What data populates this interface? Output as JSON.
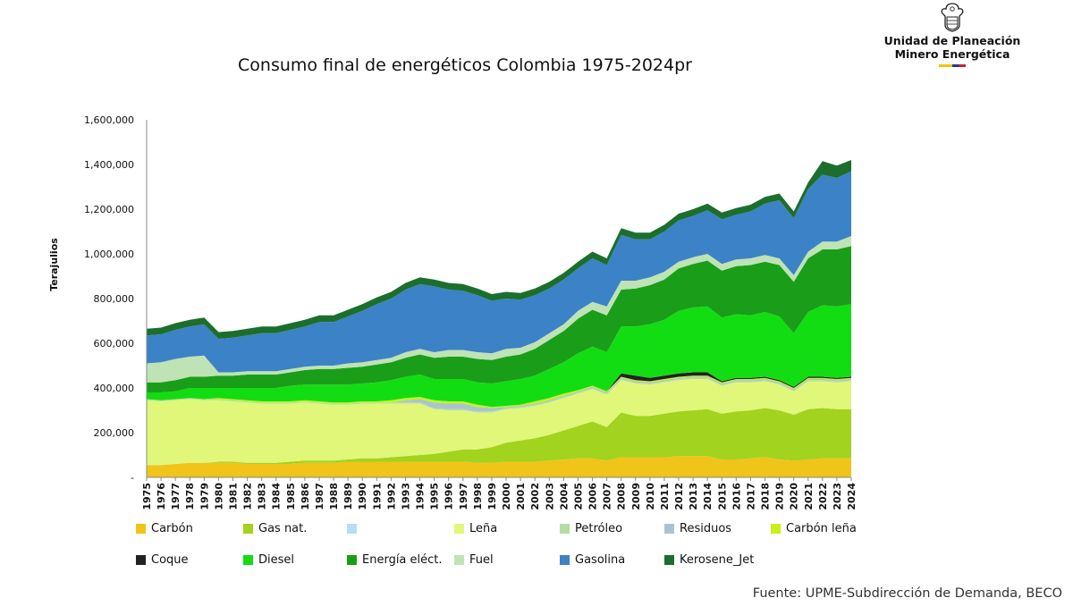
{
  "logo": {
    "line1": "Unidad de Planeación",
    "line2": "Minero Energética",
    "flag_colors": [
      "#f2c500",
      "#1f3c88",
      "#d21f2b"
    ]
  },
  "source": "Fuente: UPME-Subdirección de Demanda, BECO",
  "chart_data": {
    "type": "area",
    "stacked": true,
    "title": "Consumo final de energéticos Colombia 1975-2024pr",
    "ylabel": "Terajulios",
    "xlabel": "",
    "ylim": [
      0,
      1600000
    ],
    "yticks": [
      0,
      200000,
      400000,
      600000,
      800000,
      1000000,
      1200000,
      1400000,
      1600000
    ],
    "ytick_labels": [
      "-",
      "200,000",
      "400,000",
      "600,000",
      "800,000",
      "1,000,000",
      "1,200,000",
      "1,400,000",
      "1,600,000"
    ],
    "grid": false,
    "legend_position": "bottom",
    "x": [
      "1975",
      "1976",
      "1977",
      "1978",
      "1979",
      "1980",
      "1981",
      "1982",
      "1983",
      "1984",
      "1985",
      "1986",
      "1987",
      "1988",
      "1989",
      "1990",
      "1991",
      "1992",
      "1993",
      "1994",
      "1995",
      "1996",
      "1997",
      "1998",
      "1999",
      "2000",
      "2001",
      "2002",
      "2003",
      "2004",
      "2005",
      "2006",
      "2007",
      "2008",
      "2009",
      "2010",
      "2011",
      "2012",
      "2013",
      "2014",
      "2015",
      "2016",
      "2017",
      "2018",
      "2019",
      "2020",
      "2021",
      "2022",
      "2023",
      "2024"
    ],
    "series": [
      {
        "name": "Carbón",
        "color": "#f0c419",
        "values": [
          55000,
          55000,
          60000,
          65000,
          65000,
          65000,
          65000,
          60000,
          60000,
          60000,
          60000,
          65000,
          65000,
          65000,
          70000,
          70000,
          70000,
          70000,
          70000,
          70000,
          70000,
          70000,
          70000,
          65000,
          65000,
          70000,
          70000,
          70000,
          75000,
          80000,
          85000,
          85000,
          75000,
          90000,
          90000,
          90000,
          90000,
          95000,
          95000,
          95000,
          80000,
          80000,
          85000,
          90000,
          80000,
          75000,
          80000,
          85000,
          85000,
          85000
        ]
      },
      {
        "name": "Gas nat.",
        "color": "#a2d31e",
        "values": [
          0,
          0,
          0,
          0,
          0,
          5000,
          5000,
          5000,
          5000,
          5000,
          10000,
          10000,
          10000,
          10000,
          10000,
          15000,
          15000,
          20000,
          25000,
          30000,
          35000,
          45000,
          55000,
          60000,
          70000,
          85000,
          95000,
          105000,
          115000,
          130000,
          145000,
          165000,
          150000,
          200000,
          185000,
          185000,
          195000,
          200000,
          205000,
          210000,
          205000,
          215000,
          215000,
          220000,
          220000,
          205000,
          225000,
          225000,
          220000,
          220000
        ]
      },
      {
        "name": "",
        "color": "#b3e0f5",
        "values": [
          0,
          0,
          0,
          0,
          0,
          0,
          0,
          0,
          0,
          0,
          0,
          0,
          0,
          0,
          0,
          0,
          0,
          0,
          0,
          0,
          0,
          0,
          0,
          0,
          0,
          0,
          0,
          0,
          0,
          0,
          0,
          0,
          0,
          0,
          0,
          0,
          0,
          0,
          0,
          0,
          0,
          0,
          0,
          0,
          0,
          0,
          0,
          0,
          0,
          0
        ]
      },
      {
        "name": "Leña",
        "color": "#e0f77a",
        "values": [
          290000,
          285000,
          285000,
          285000,
          280000,
          275000,
          270000,
          270000,
          265000,
          265000,
          260000,
          260000,
          255000,
          250000,
          245000,
          245000,
          245000,
          240000,
          235000,
          230000,
          200000,
          185000,
          175000,
          165000,
          155000,
          150000,
          145000,
          145000,
          145000,
          145000,
          145000,
          145000,
          145000,
          145000,
          145000,
          140000,
          140000,
          140000,
          140000,
          135000,
          125000,
          130000,
          125000,
          120000,
          115000,
          105000,
          125000,
          120000,
          120000,
          125000
        ]
      },
      {
        "name": "Petróleo",
        "color": "#b5dda0",
        "values": [
          5000,
          5000,
          5000,
          5000,
          5000,
          5000,
          5000,
          5000,
          5000,
          5000,
          5000,
          5000,
          5000,
          5000,
          5000,
          5000,
          5000,
          5000,
          5000,
          5000,
          5000,
          5000,
          5000,
          5000,
          5000,
          5000,
          5000,
          5000,
          5000,
          5000,
          5000,
          5000,
          5000,
          5000,
          5000,
          5000,
          5000,
          5000,
          5000,
          5000,
          5000,
          5000,
          5000,
          5000,
          5000,
          5000,
          5000,
          5000,
          5000,
          5000
        ]
      },
      {
        "name": "Residuos",
        "color": "#a9c4cf",
        "values": [
          0,
          0,
          0,
          0,
          0,
          0,
          0,
          0,
          0,
          0,
          0,
          0,
          0,
          0,
          0,
          0,
          0,
          0,
          10000,
          15000,
          25000,
          25000,
          25000,
          20000,
          15000,
          5000,
          5000,
          5000,
          5000,
          5000,
          5000,
          5000,
          5000,
          5000,
          5000,
          5000,
          5000,
          5000,
          5000,
          5000,
          5000,
          5000,
          5000,
          5000,
          5000,
          5000,
          5000,
          5000,
          5000,
          5000
        ]
      },
      {
        "name": "Carbón leña",
        "color": "#c6f21a",
        "values": [
          0,
          0,
          0,
          0,
          0,
          5000,
          5000,
          5000,
          5000,
          5000,
          5000,
          5000,
          5000,
          5000,
          5000,
          5000,
          5000,
          10000,
          10000,
          10000,
          10000,
          10000,
          10000,
          10000,
          5000,
          5000,
          5000,
          10000,
          10000,
          10000,
          5000,
          5000,
          5000,
          5000,
          5000,
          5000,
          5000,
          5000,
          5000,
          5000,
          5000,
          5000,
          5000,
          5000,
          5000,
          5000,
          5000,
          5000,
          5000,
          5000
        ]
      },
      {
        "name": "Coque",
        "color": "#222222",
        "values": [
          0,
          0,
          0,
          0,
          0,
          0,
          0,
          0,
          0,
          0,
          0,
          0,
          0,
          0,
          0,
          0,
          0,
          0,
          0,
          0,
          0,
          0,
          0,
          0,
          0,
          0,
          0,
          0,
          0,
          0,
          0,
          0,
          0,
          15000,
          20000,
          15000,
          15000,
          15000,
          15000,
          15000,
          5000,
          5000,
          5000,
          5000,
          5000,
          5000,
          5000,
          5000,
          5000,
          5000
        ]
      },
      {
        "name": "Diesel",
        "color": "#12dd12",
        "values": [
          30000,
          35000,
          35000,
          45000,
          50000,
          45000,
          50000,
          55000,
          60000,
          60000,
          70000,
          70000,
          75000,
          80000,
          80000,
          80000,
          85000,
          90000,
          95000,
          100000,
          95000,
          100000,
          100000,
          100000,
          105000,
          110000,
          115000,
          115000,
          130000,
          140000,
          165000,
          175000,
          175000,
          210000,
          220000,
          240000,
          250000,
          280000,
          290000,
          295000,
          285000,
          285000,
          280000,
          290000,
          285000,
          240000,
          290000,
          320000,
          320000,
          325000
        ]
      },
      {
        "name": "Energía eléct.",
        "color": "#1a9e1a",
        "values": [
          45000,
          45000,
          50000,
          50000,
          50000,
          55000,
          55000,
          60000,
          60000,
          60000,
          60000,
          65000,
          70000,
          70000,
          75000,
          75000,
          80000,
          80000,
          85000,
          90000,
          95000,
          100000,
          100000,
          105000,
          105000,
          110000,
          110000,
          120000,
          130000,
          140000,
          155000,
          165000,
          165000,
          165000,
          170000,
          175000,
          180000,
          190000,
          195000,
          205000,
          210000,
          215000,
          225000,
          225000,
          230000,
          230000,
          240000,
          250000,
          255000,
          260000
        ]
      },
      {
        "name": "Fuel",
        "color": "#bfe3b4",
        "values": [
          85000,
          90000,
          95000,
          90000,
          95000,
          15000,
          15000,
          15000,
          15000,
          15000,
          15000,
          15000,
          15000,
          15000,
          20000,
          20000,
          20000,
          20000,
          25000,
          25000,
          25000,
          30000,
          30000,
          30000,
          30000,
          35000,
          30000,
          30000,
          30000,
          30000,
          35000,
          35000,
          40000,
          40000,
          35000,
          35000,
          35000,
          30000,
          30000,
          30000,
          30000,
          30000,
          30000,
          30000,
          30000,
          30000,
          30000,
          35000,
          35000,
          45000
        ]
      },
      {
        "name": "Gasolina",
        "color": "#3b82c6",
        "values": [
          125000,
          125000,
          130000,
          135000,
          140000,
          150000,
          155000,
          160000,
          170000,
          170000,
          175000,
          180000,
          195000,
          195000,
          210000,
          230000,
          250000,
          265000,
          280000,
          290000,
          295000,
          270000,
          265000,
          255000,
          235000,
          225000,
          215000,
          210000,
          200000,
          200000,
          190000,
          195000,
          185000,
          205000,
          185000,
          170000,
          180000,
          185000,
          185000,
          195000,
          200000,
          200000,
          210000,
          230000,
          260000,
          255000,
          280000,
          300000,
          285000,
          290000
        ]
      },
      {
        "name": "Kerosene_Jet",
        "color": "#1c6e2c",
        "values": [
          30000,
          30000,
          30000,
          30000,
          30000,
          30000,
          30000,
          30000,
          30000,
          30000,
          30000,
          30000,
          30000,
          30000,
          30000,
          30000,
          30000,
          30000,
          30000,
          30000,
          30000,
          30000,
          30000,
          30000,
          30000,
          30000,
          30000,
          30000,
          30000,
          30000,
          30000,
          30000,
          30000,
          30000,
          30000,
          30000,
          30000,
          30000,
          30000,
          30000,
          30000,
          30000,
          30000,
          30000,
          30000,
          30000,
          30000,
          60000,
          55000,
          50000
        ]
      }
    ]
  }
}
